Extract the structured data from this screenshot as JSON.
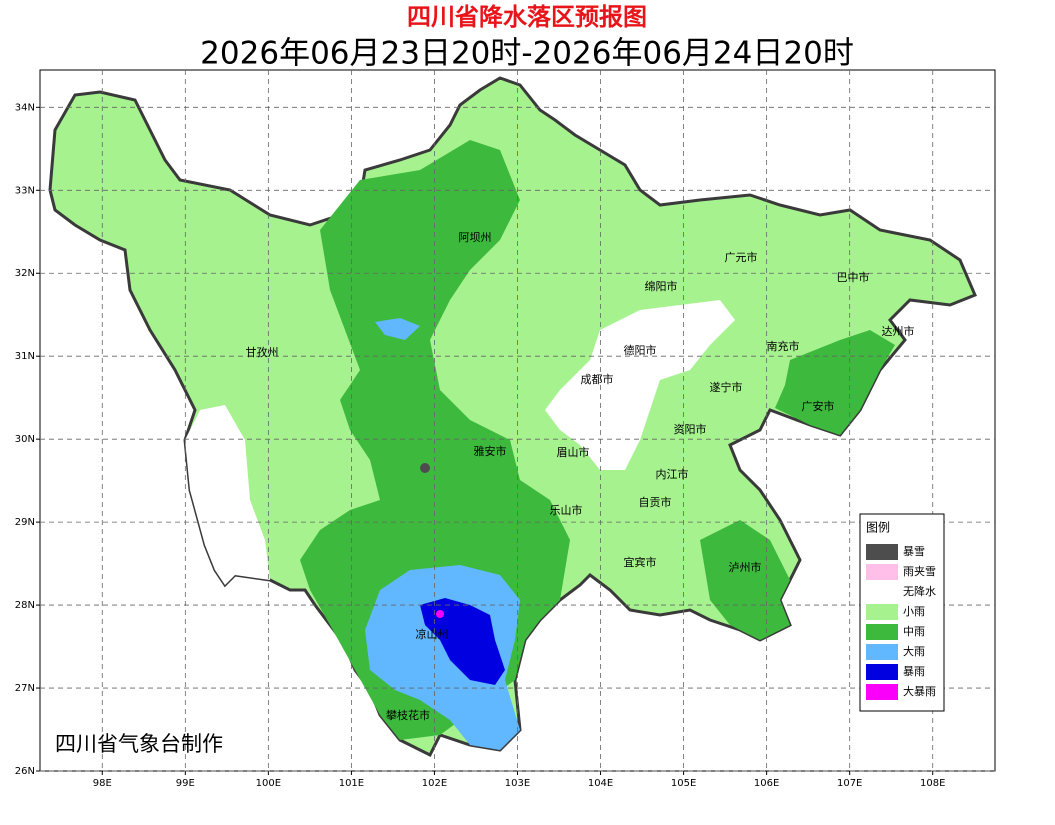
{
  "title": "四川省降水落区预报图",
  "subtitle": "2026年06月23日20时-2026年06月24日20时",
  "axes": {
    "xlim": [
      97.25,
      108.75
    ],
    "ylim": [
      26,
      34.45
    ],
    "xticks": [
      {
        "value": 98,
        "label": "98E"
      },
      {
        "value": 99,
        "label": "99E"
      },
      {
        "value": 100,
        "label": "100E"
      },
      {
        "value": 101,
        "label": "101E"
      },
      {
        "value": 102,
        "label": "102E"
      },
      {
        "value": 103,
        "label": "103E"
      },
      {
        "value": 104,
        "label": "104E"
      },
      {
        "value": 105,
        "label": "105E"
      },
      {
        "value": 106,
        "label": "106E"
      },
      {
        "value": 107,
        "label": "107E"
      },
      {
        "value": 108,
        "label": "108E"
      }
    ],
    "yticks": [
      {
        "value": 26,
        "label": "26N"
      },
      {
        "value": 27,
        "label": "27N"
      },
      {
        "value": 28,
        "label": "28N"
      },
      {
        "value": 29,
        "label": "29N"
      },
      {
        "value": 30,
        "label": "30N"
      },
      {
        "value": 31,
        "label": "31N"
      },
      {
        "value": 32,
        "label": "32N"
      },
      {
        "value": 33,
        "label": "33N"
      },
      {
        "value": 34,
        "label": "34N"
      }
    ],
    "grid": true
  },
  "cities": [
    "阿坝州",
    "广元市",
    "巴中市",
    "绵阳市",
    "达州市",
    "德阳市",
    "南充市",
    "甘孜州",
    "成都市",
    "遂宁市",
    "广安市",
    "雅安市",
    "眉山市",
    "资阳市",
    "内江市",
    "自贡市",
    "乐山市",
    "宜宾市",
    "泸州市",
    "凉山州",
    "攀枝花市"
  ],
  "legend": {
    "title": "图例",
    "items": [
      {
        "label": "暴雪",
        "color": "#4d4d4d"
      },
      {
        "label": "雨夹雪",
        "color": "#ffbfe9"
      },
      {
        "label": "无降水",
        "color": "#ffffff"
      },
      {
        "label": "小雨",
        "color": "#a6f28f"
      },
      {
        "label": "中雨",
        "color": "#3dba3d"
      },
      {
        "label": "大雨",
        "color": "#61b8ff"
      },
      {
        "label": "暴雨",
        "color": "#0000e1"
      },
      {
        "label": "大暴雨",
        "color": "#fa00fa"
      }
    ]
  },
  "credit": "四川省气象台制作"
}
